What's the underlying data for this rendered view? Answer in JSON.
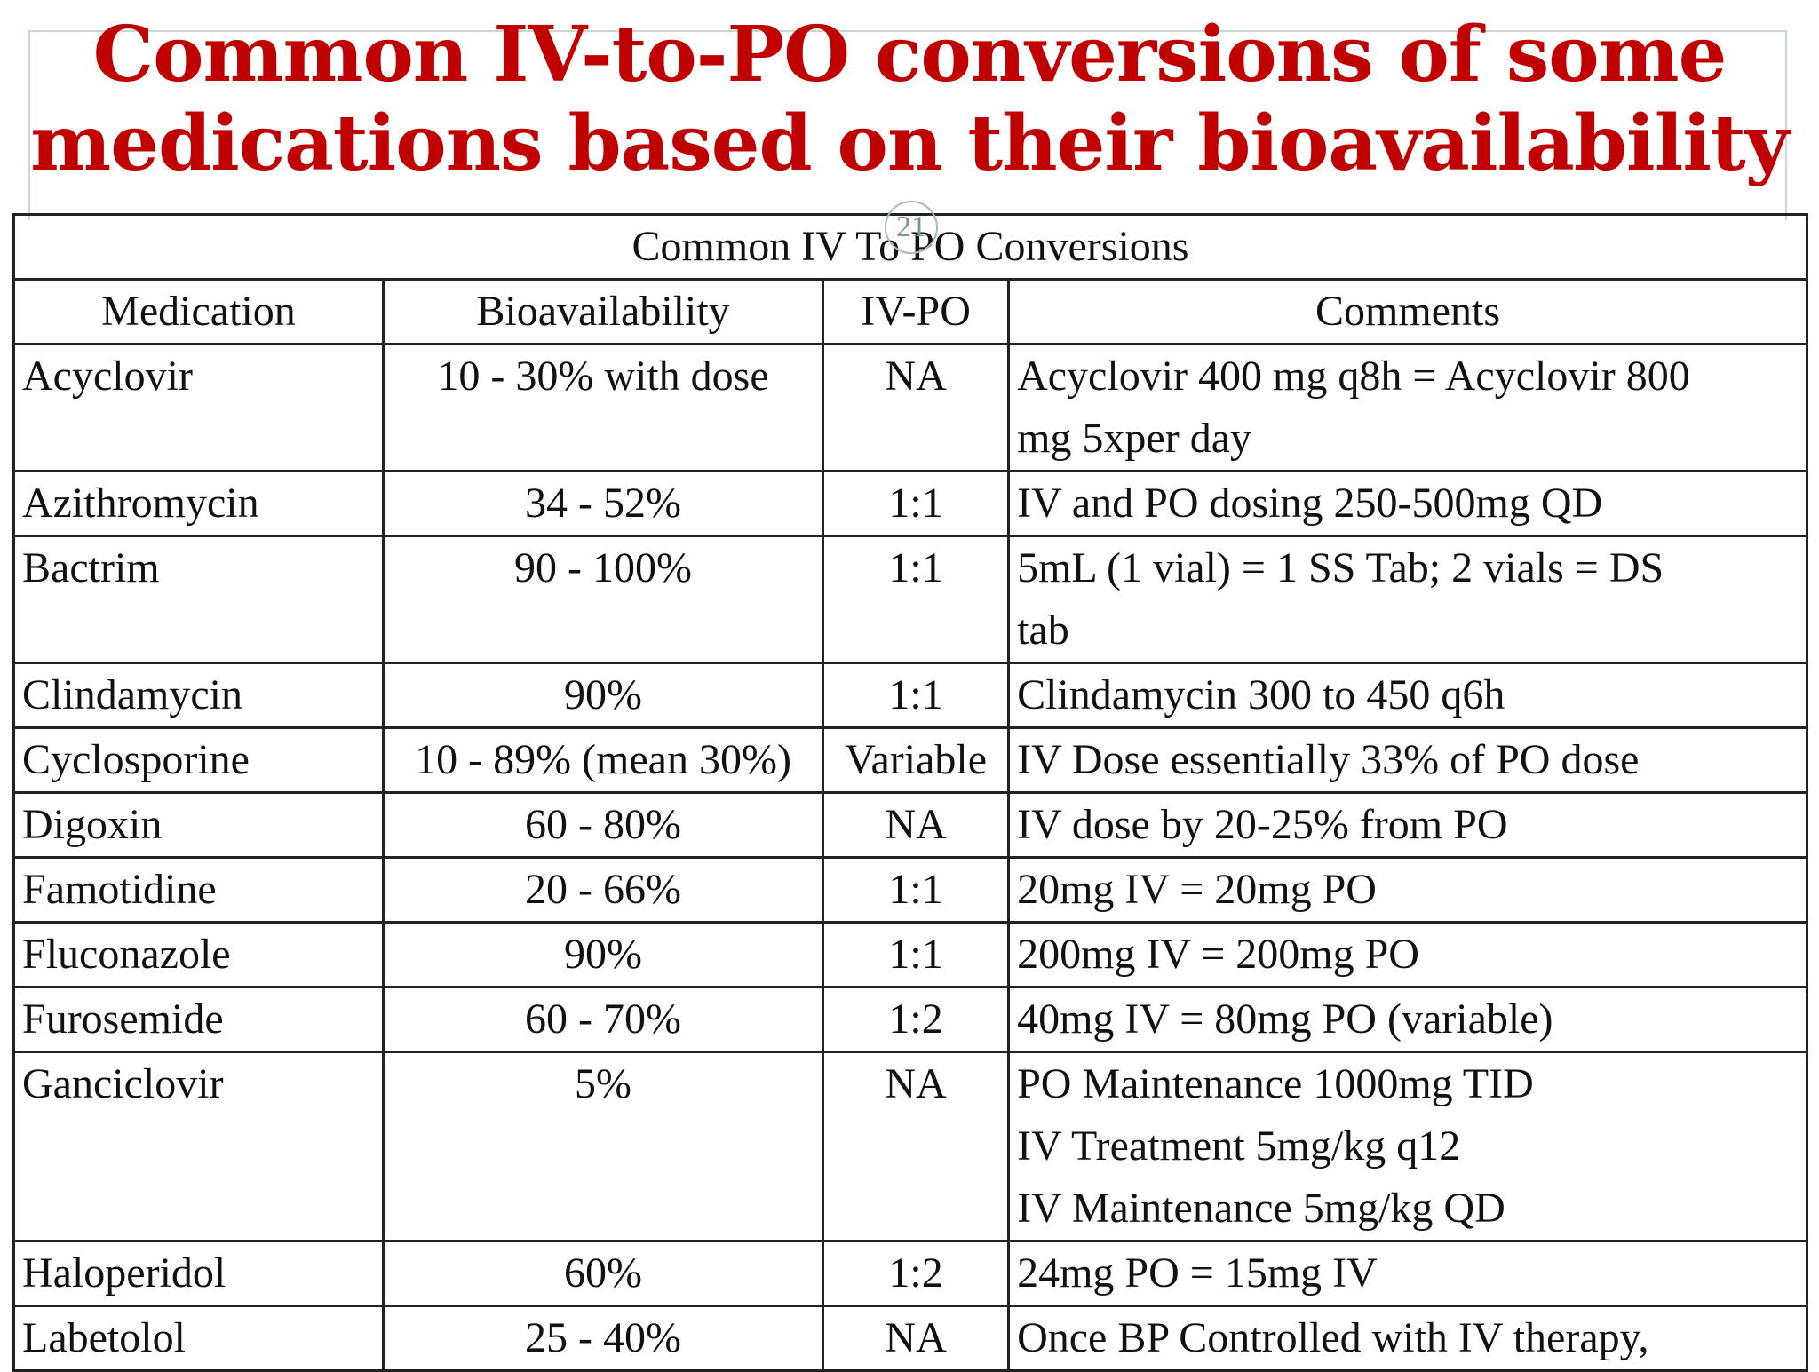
{
  "title": "Common IV-to-PO conversions of some medications based on their bioavailability",
  "slide_number": "21",
  "table": {
    "caption": "Common IV To PO Conversions",
    "headers": {
      "medication": "Medication",
      "bioavailability": "Bioavailability",
      "ivpo": "IV-PO",
      "comments": "Comments"
    },
    "rows": [
      {
        "medication": "Acyclovir",
        "bioavailability": "10 - 30%   with  dose",
        "ivpo": "NA",
        "comments": "Acyclovir 400 mg q8h = Acyclovir 800\nmg 5xper day"
      },
      {
        "medication": "Azithromycin",
        "bioavailability": "34 - 52%",
        "ivpo": "1:1",
        "comments": "IV and PO dosing 250-500mg QD"
      },
      {
        "medication": "Bactrim",
        "bioavailability": "90 - 100%",
        "ivpo": "1:1",
        "comments": "5mL (1 vial) = 1 SS Tab; 2 vials = DS\ntab"
      },
      {
        "medication": "Clindamycin",
        "bioavailability": "90%",
        "ivpo": "1:1",
        "comments": "Clindamycin 300 to 450 q6h"
      },
      {
        "medication": "Cyclosporine",
        "bioavailability": "10 - 89% (mean 30%)",
        "ivpo": "Variable",
        "comments": "IV Dose essentially 33% of  PO dose"
      },
      {
        "medication": "Digoxin",
        "bioavailability": "60 - 80%",
        "ivpo": "NA",
        "comments": " IV dose by 20-25% from PO"
      },
      {
        "medication": "Famotidine",
        "bioavailability": "20 - 66%",
        "ivpo": "1:1",
        "comments": "20mg IV = 20mg PO"
      },
      {
        "medication": "Fluconazole",
        "bioavailability": "90%",
        "ivpo": "1:1",
        "comments": "200mg IV = 200mg PO"
      },
      {
        "medication": "Furosemide",
        "bioavailability": "60 - 70%",
        "ivpo": "1:2",
        "comments": "40mg IV = 80mg PO (variable)"
      },
      {
        "medication": "Ganciclovir",
        "bioavailability": "5%",
        "ivpo": "NA",
        "comments": "PO Maintenance 1000mg TID\nIV Treatment 5mg/kg q12\nIV Maintenance 5mg/kg QD"
      },
      {
        "medication": "Haloperidol",
        "bioavailability": "60%",
        "ivpo": "1:2",
        "comments": "24mg PO = 15mg IV"
      },
      {
        "medication": "Labetolol",
        "bioavailability": "25 - 40%",
        "ivpo": "NA",
        "comments": "Once BP Controlled with IV therapy,"
      }
    ]
  }
}
